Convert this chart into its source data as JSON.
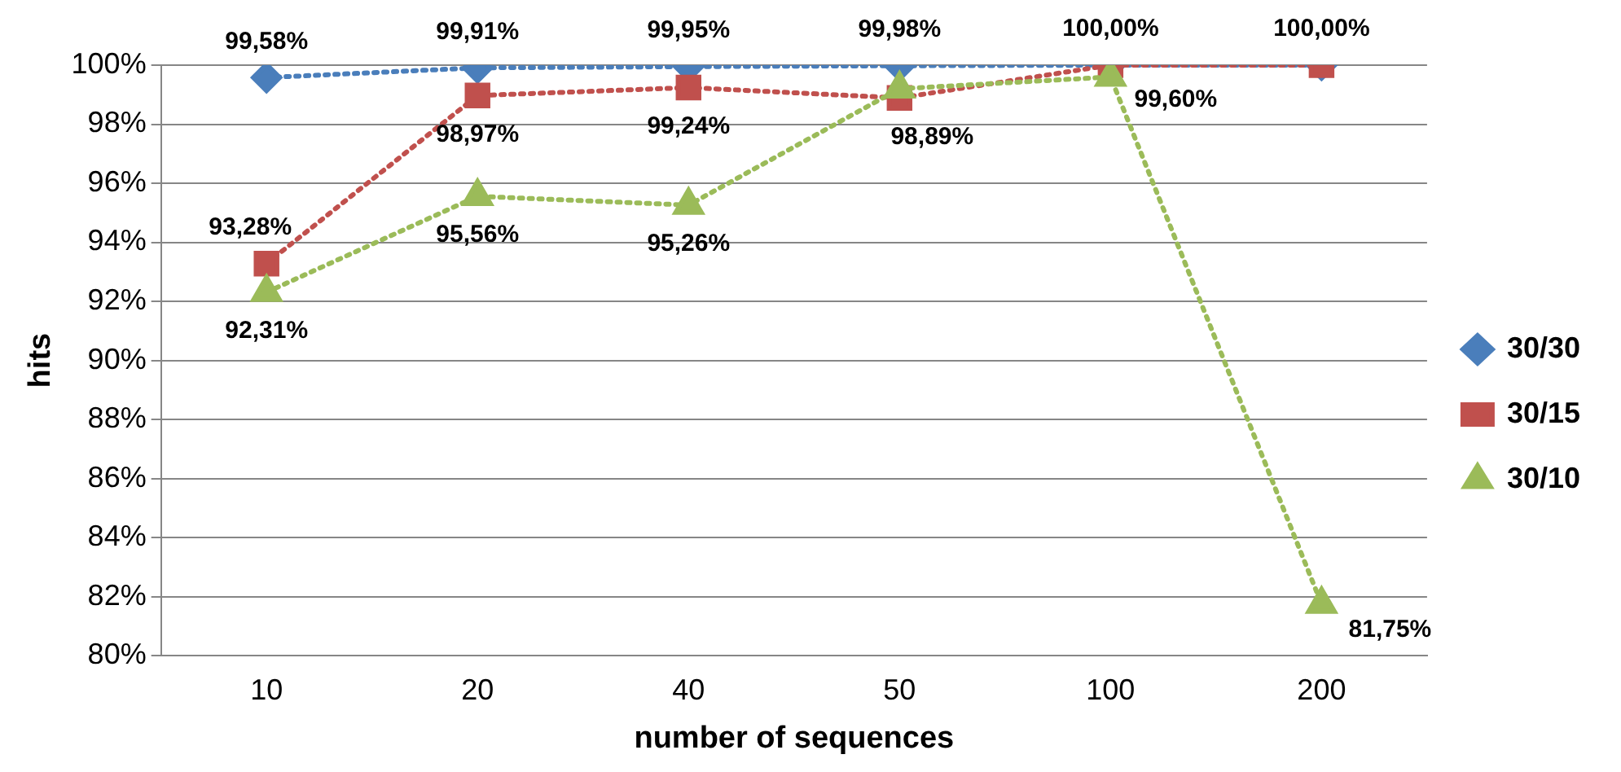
{
  "chart_data": {
    "type": "line",
    "xlabel": "number of sequences",
    "ylabel": "hits",
    "categories": [
      "10",
      "20",
      "40",
      "50",
      "100",
      "200"
    ],
    "ylim": [
      80,
      100
    ],
    "yticks": [
      {
        "value": 80,
        "label": "80%"
      },
      {
        "value": 82,
        "label": "82%"
      },
      {
        "value": 84,
        "label": "84%"
      },
      {
        "value": 86,
        "label": "86%"
      },
      {
        "value": 88,
        "label": "88%"
      },
      {
        "value": 90,
        "label": "90%"
      },
      {
        "value": 92,
        "label": "92%"
      },
      {
        "value": 94,
        "label": "94%"
      },
      {
        "value": 96,
        "label": "96%"
      },
      {
        "value": 98,
        "label": "98%"
      },
      {
        "value": 100,
        "label": "100%"
      }
    ],
    "grid": "y",
    "legend": "right",
    "line_style": "dotted",
    "series": [
      {
        "name": "30/30",
        "color": "#4a7ebb",
        "marker": "diamond",
        "values": [
          99.58,
          99.91,
          99.95,
          99.98,
          100,
          100
        ],
        "value_labels": [
          "99,58%",
          "99,91%",
          "99,95%",
          "99,98%",
          "100,00%",
          "100,00%"
        ]
      },
      {
        "name": "30/15",
        "color": "#c0504d",
        "marker": "square",
        "values": [
          93.28,
          98.97,
          99.24,
          98.89,
          100,
          100
        ],
        "value_labels": [
          "93,28%",
          "98,97%",
          "99,24%",
          "98,89%",
          null,
          null
        ]
      },
      {
        "name": "30/10",
        "color": "#9bbb59",
        "marker": "triangle",
        "values": [
          92.31,
          95.56,
          95.26,
          99.2,
          99.6,
          81.75
        ],
        "value_labels": [
          "92,31%",
          "95,56%",
          "95,26%",
          null,
          "99,60%",
          "81,75%"
        ]
      }
    ]
  }
}
